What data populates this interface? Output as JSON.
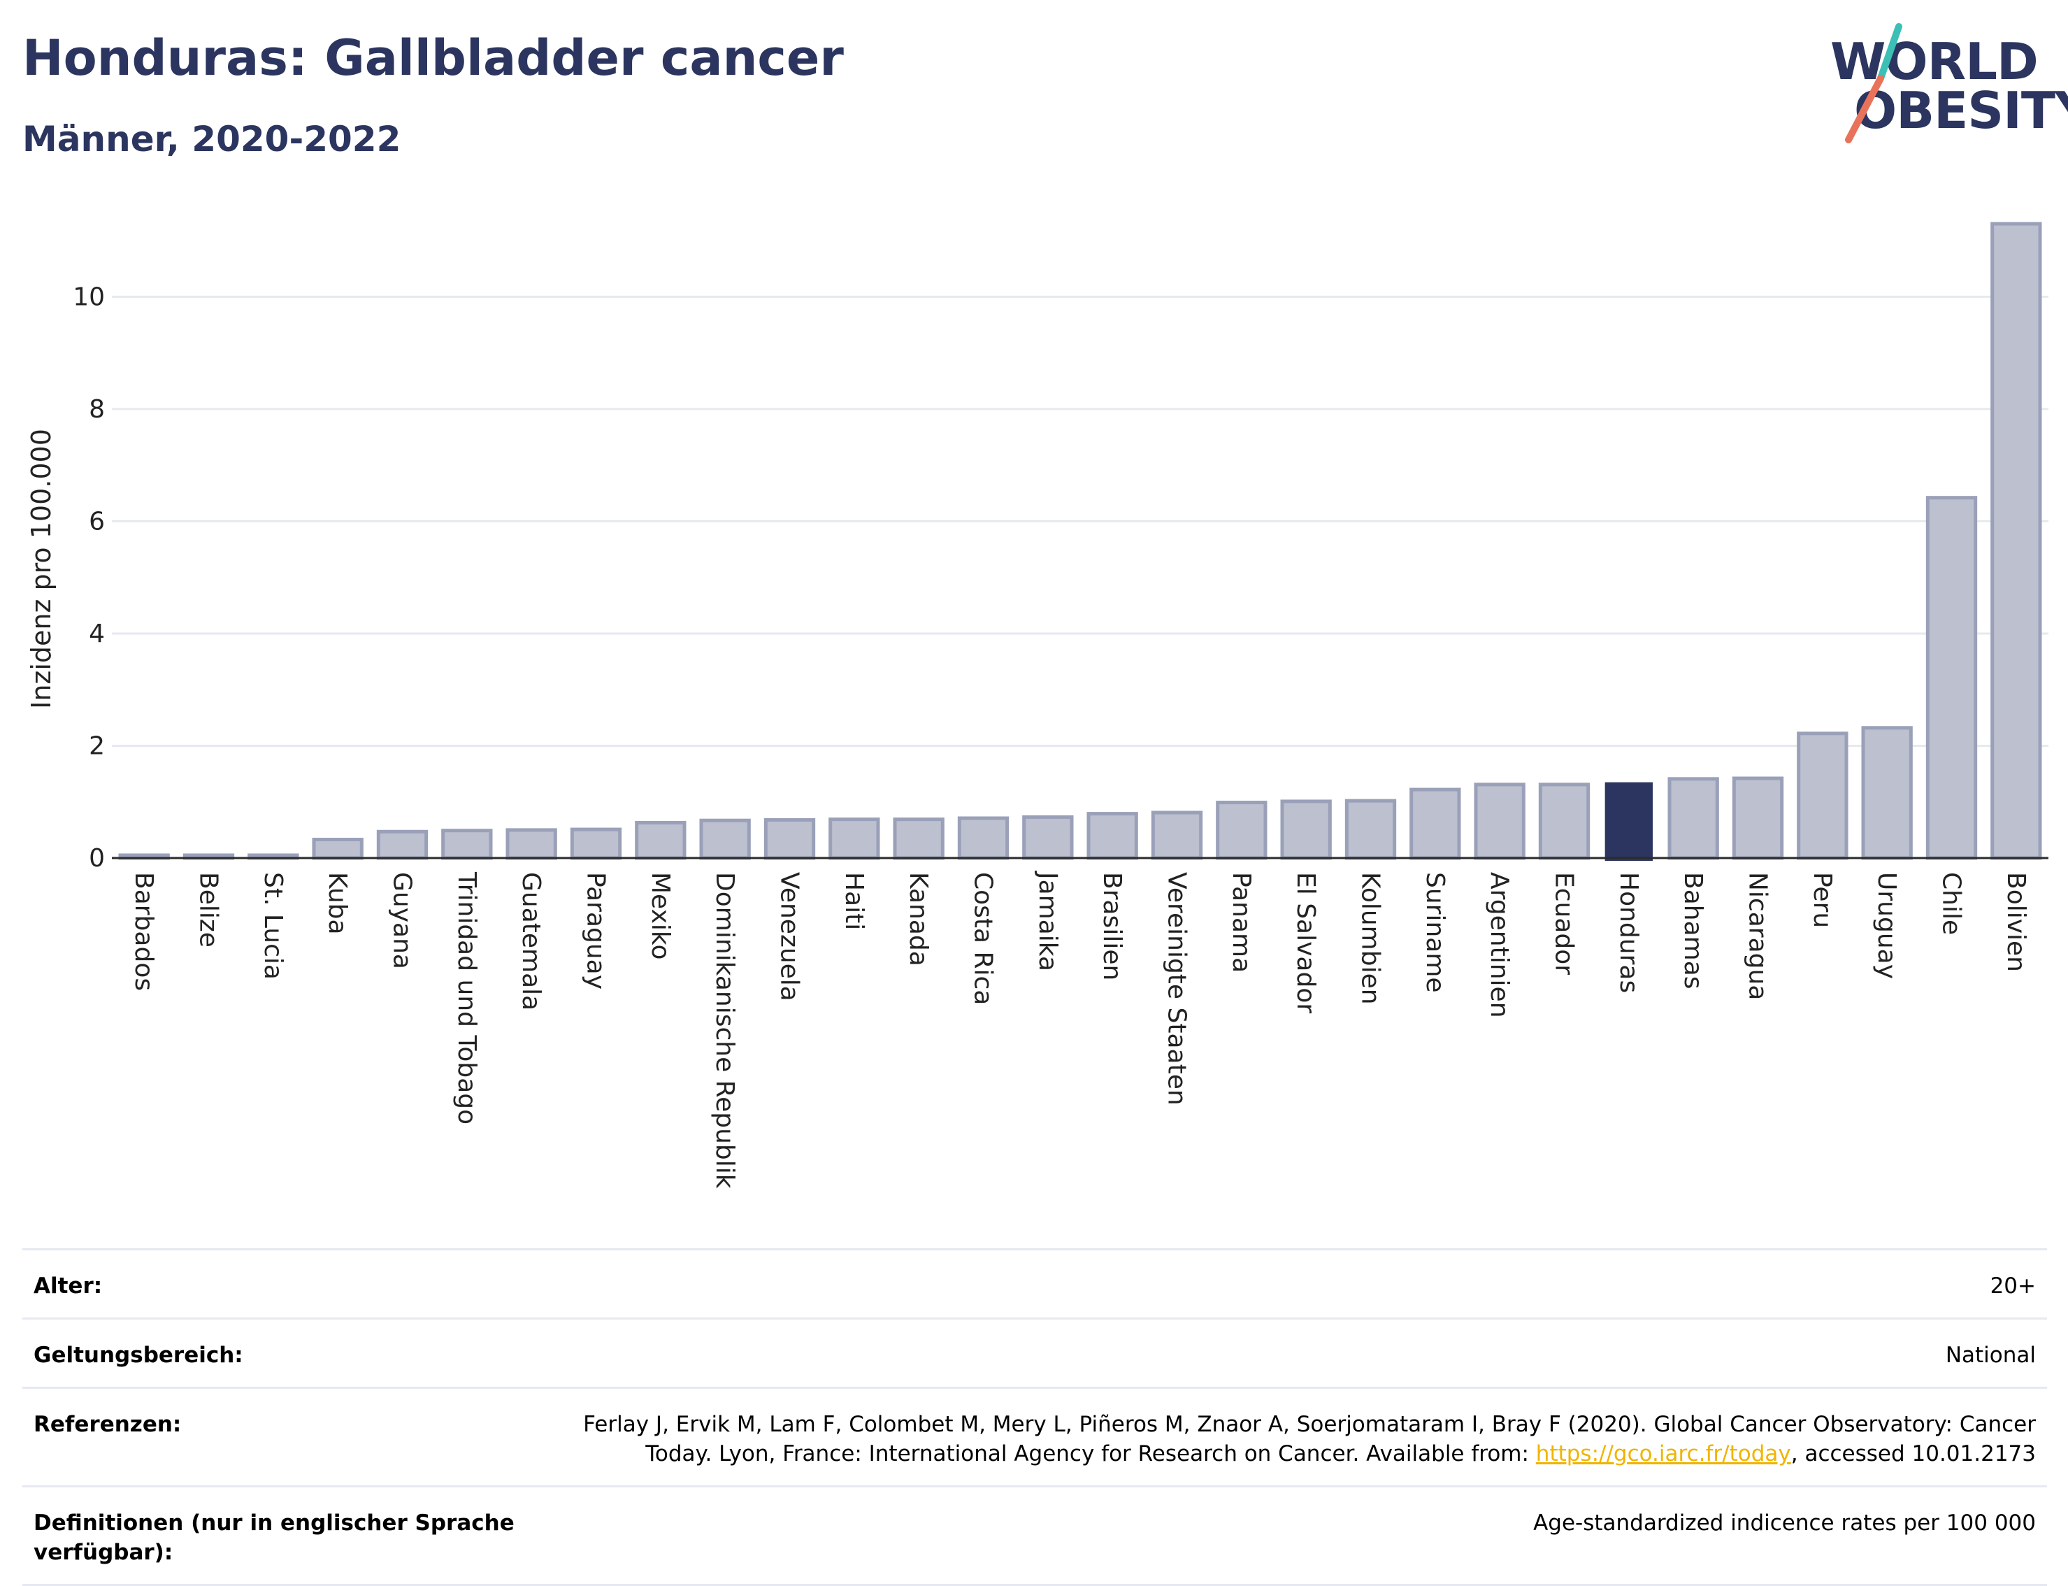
{
  "header": {
    "title": "Honduras: Gallbladder cancer",
    "subtitle": "Männer, 2020-2022"
  },
  "logo": {
    "line1": "WORLD",
    "line2": "OBESITY",
    "colors": {
      "text": "#2b355f",
      "slash_top": "#3cbfb4",
      "slash_bottom": "#e8735a"
    }
  },
  "colors": {
    "bar": "#bcc0cf",
    "bar_border": "#9aa0b8",
    "highlight": "#2b355f",
    "grid": "#e6e9f1",
    "axis": "#2b2b2b"
  },
  "chart_data": {
    "type": "bar",
    "title": "Honduras: Gallbladder cancer",
    "subtitle": "Männer, 2020-2022",
    "xlabel": "",
    "ylabel": "Inzidenz pro 100.000",
    "ylim": [
      0,
      11.3
    ],
    "yticks": [
      0,
      2,
      4,
      6,
      8,
      10
    ],
    "grid": true,
    "highlight": "Honduras",
    "categories": [
      "Barbados",
      "Belize",
      "St. Lucia",
      "Kuba",
      "Guyana",
      "Trinidad und Tobago",
      "Guatemala",
      "Paraguay",
      "Mexiko",
      "Dominikanische Republik",
      "Venezuela",
      "Haiti",
      "Kanada",
      "Costa Rica",
      "Jamaika",
      "Brasilien",
      "Vereinigte Staaten",
      "Panama",
      "El Salvador",
      "Kolumbien",
      "Suriname",
      "Argentinien",
      "Ecuador",
      "Honduras",
      "Bahamas",
      "Nicaragua",
      "Peru",
      "Uruguay",
      "Chile",
      "Bolivien"
    ],
    "values": [
      0.05,
      0.05,
      0.05,
      0.33,
      0.47,
      0.49,
      0.5,
      0.51,
      0.63,
      0.67,
      0.68,
      0.69,
      0.69,
      0.71,
      0.73,
      0.79,
      0.81,
      0.99,
      1.01,
      1.02,
      1.22,
      1.31,
      1.31,
      1.35,
      1.41,
      1.42,
      2.22,
      2.32,
      6.42,
      11.3
    ]
  },
  "meta": [
    {
      "label": "Alter:",
      "value": "20+"
    },
    {
      "label": "Geltungsbereich:",
      "value": "National"
    },
    {
      "label": "Referenzen:",
      "value_pre": "Ferlay J, Ervik M, Lam F, Colombet M, Mery L, Piñeros M, Znaor A, Soerjomataram I, Bray F (2020). Global Cancer Observatory: Cancer Today. Lyon, France: International Agency for Research on Cancer. Available from: ",
      "link": "https://gco.iarc.fr/today",
      "value_post": ", accessed 10.01.2173"
    },
    {
      "label": "Definitionen (nur in englischer Sprache verfügbar):",
      "value": "Age-standardized indicence rates per 100 000"
    }
  ]
}
